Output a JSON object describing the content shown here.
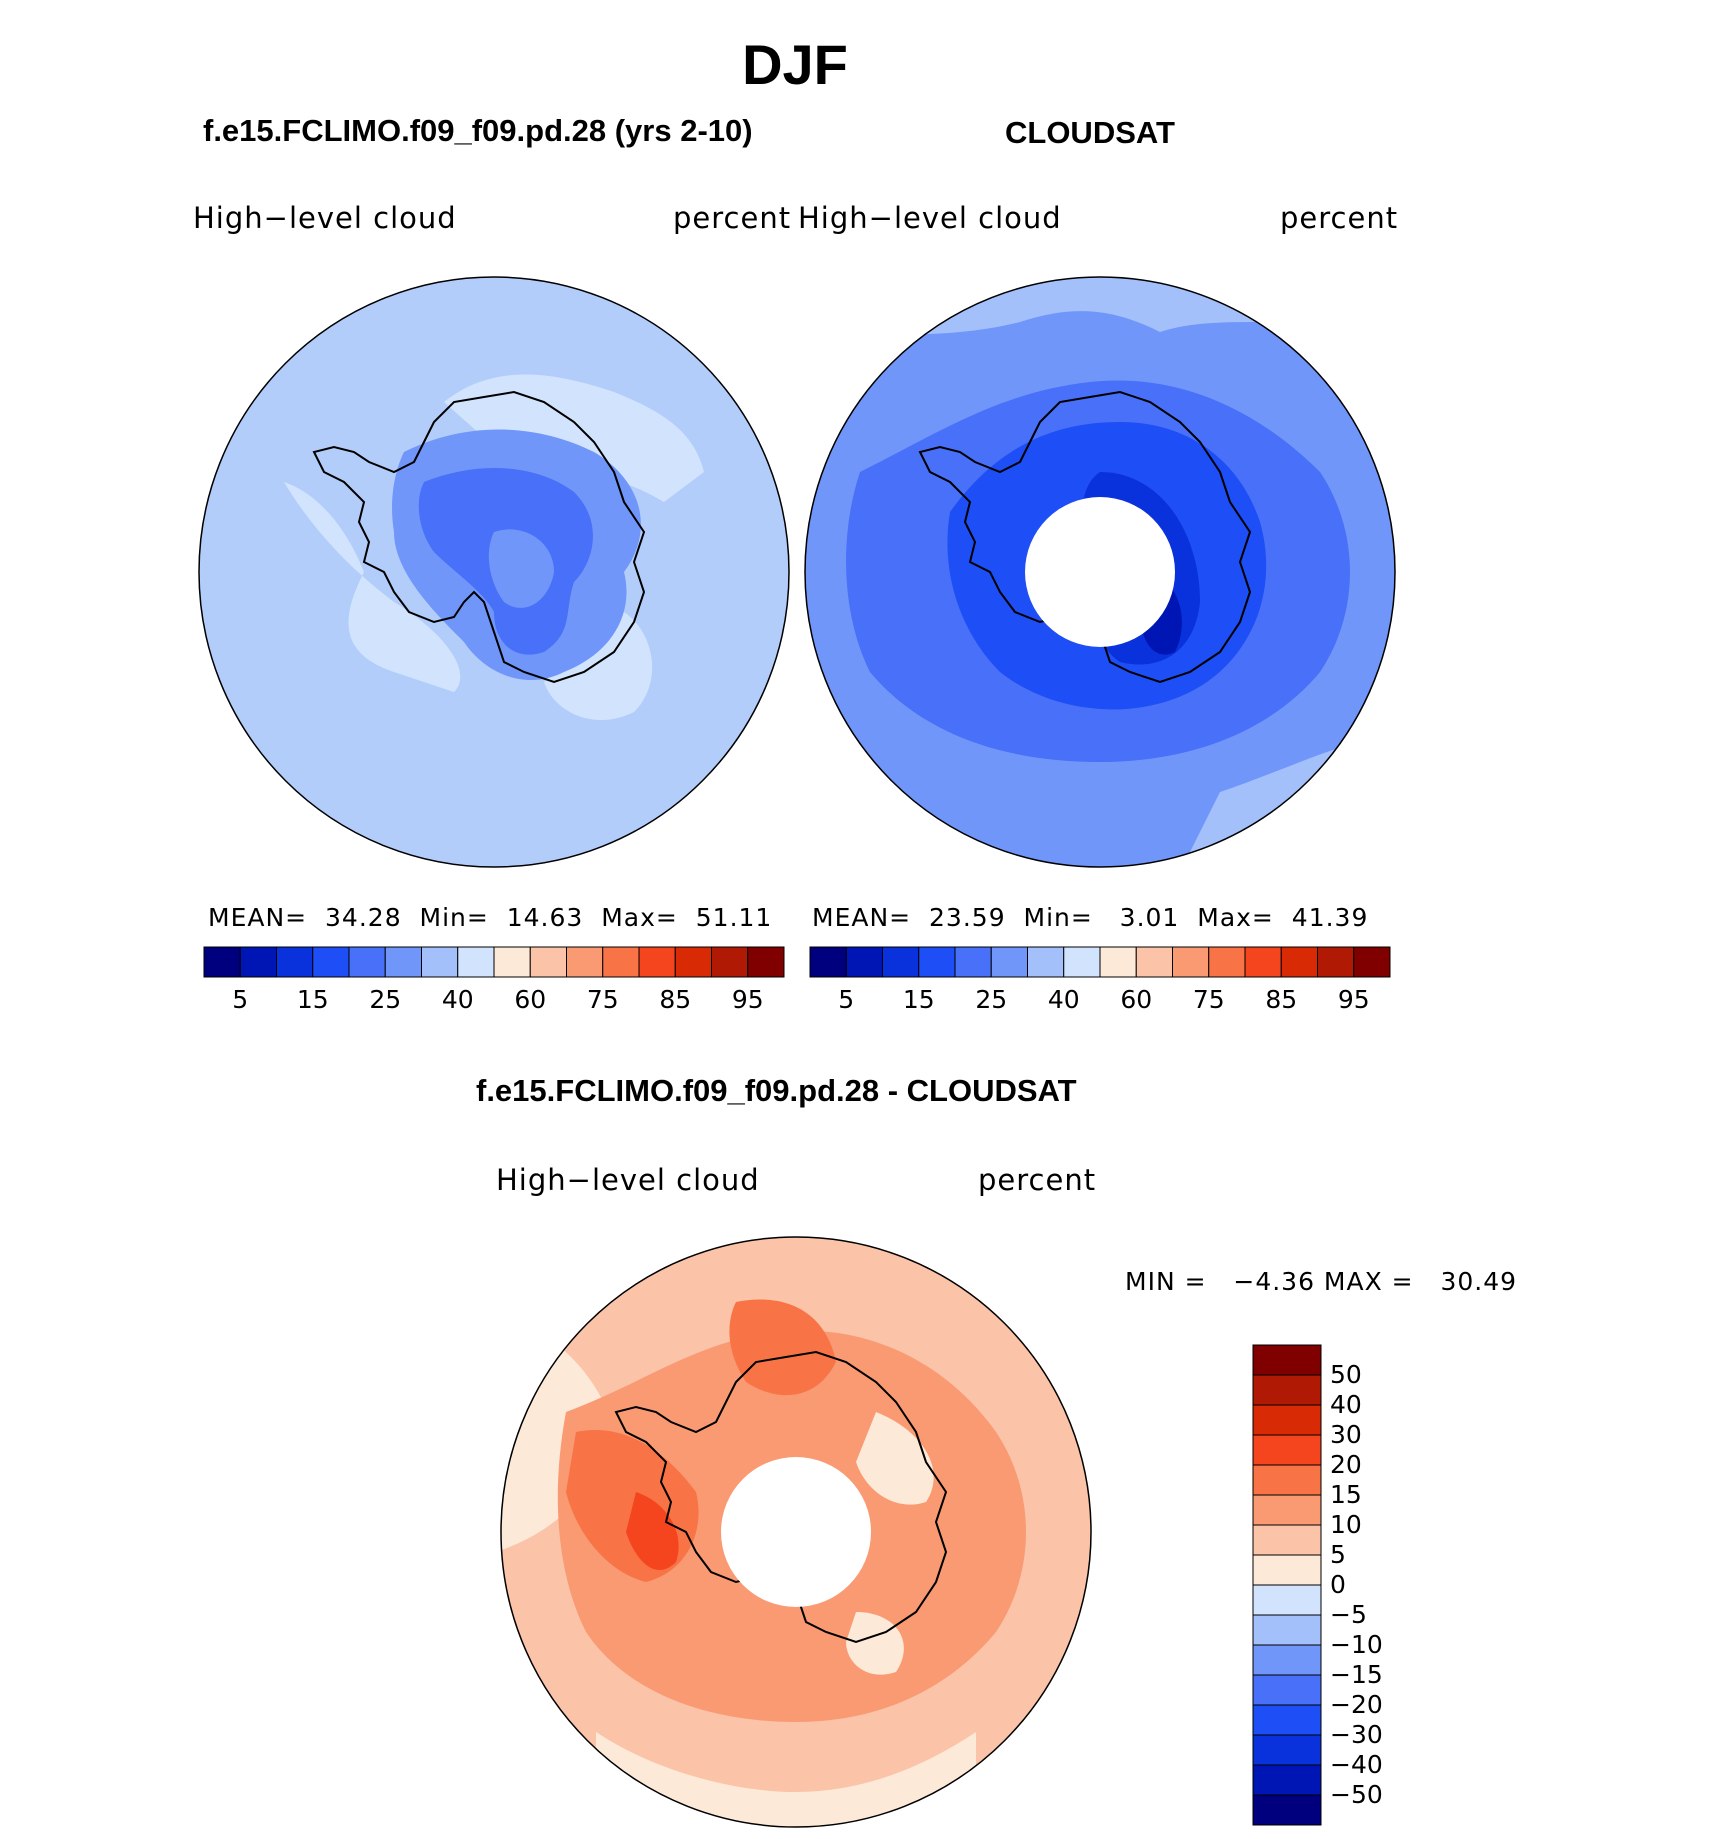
{
  "title": "DJF",
  "panels": [
    {
      "case_title": "f.e15.FCLIMO.f09_f09.pd.28 (yrs 2-10)",
      "left_string": "High−level  cloud",
      "right_string": "percent",
      "stats": {
        "mean_label": "MEAN=",
        "mean": "34.28",
        "min_label": "Min=",
        "min": "14.63",
        "max_label": "Max=",
        "max": "51.11"
      },
      "colorbar_labels": [
        "5",
        "15",
        "25",
        "40",
        "60",
        "75",
        "85",
        "95"
      ],
      "map": {
        "base_color": "#b3cdfb",
        "pole_mask": false
      }
    },
    {
      "case_title": "CLOUDSAT",
      "left_string": "High−level  cloud",
      "right_string": "percent",
      "stats": {
        "mean_label": "MEAN=",
        "mean": "23.59",
        "min_label": "Min=",
        "min": "3.01",
        "max_label": "Max=",
        "max": "41.39"
      },
      "colorbar_labels": [
        "5",
        "15",
        "25",
        "40",
        "60",
        "75",
        "85",
        "95"
      ],
      "map": {
        "base_color": "#5a87f5",
        "pole_mask": true
      }
    }
  ],
  "sequential_colorbar": {
    "colors": [
      "#00007f",
      "#0016b4",
      "#0a32dc",
      "#1e4ef5",
      "#4870f8",
      "#7096fa",
      "#a3c0fb",
      "#d2e4fd",
      "#fde9d8",
      "#fbc3a8",
      "#f99a73",
      "#f87446",
      "#f4451e",
      "#d92a06",
      "#b01a05",
      "#800000"
    ]
  },
  "difference": {
    "case_title": "f.e15.FCLIMO.f09_f09.pd.28 - CLOUDSAT",
    "left_string": "High−level  cloud",
    "right_string": "percent",
    "minmax": "MIN =   −4.36 MAX =   30.49",
    "colorbar_labels": [
      "50",
      "40",
      "30",
      "20",
      "15",
      "10",
      "5",
      "0",
      "−5",
      "−10",
      "−15",
      "−20",
      "−30",
      "−40",
      "−50"
    ],
    "colorbar_colors": [
      "#800000",
      "#b01a05",
      "#d92a06",
      "#f4451e",
      "#f87446",
      "#f99a73",
      "#fbc3a8",
      "#fde9d8",
      "#d2e4fd",
      "#a3c0fb",
      "#7096fa",
      "#4870f8",
      "#1e4ef5",
      "#0a32dc",
      "#0016b4",
      "#00007f"
    ],
    "map": {
      "base_color": "#fbc3a8",
      "pole_mask": true
    }
  }
}
